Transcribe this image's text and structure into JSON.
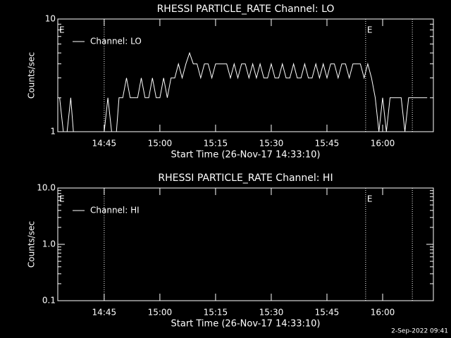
{
  "chart_data": [
    {
      "type": "line",
      "title": "RHESSI PARTICLE_RATE Channel: LO",
      "ylabel": "Counts/sec",
      "xlabel": "Start Time (26-Nov-17 14:33:10)",
      "log_y": true,
      "ylim": [
        1,
        10
      ],
      "yticks": [
        1,
        10
      ],
      "xlim": [
        "14:32:30",
        "16:13:40"
      ],
      "xticks": [
        "14:45",
        "15:00",
        "15:15",
        "15:30",
        "15:45",
        "16:00"
      ],
      "vlines": [
        "14:45",
        "15:55:25",
        "16:08"
      ],
      "annotations": [
        {
          "text": "E",
          "x": "14:32:30"
        },
        {
          "text": "E",
          "x": "15:55:25"
        }
      ],
      "legend": "upper left",
      "series": [
        {
          "name": "Channel: LO",
          "color": "#ffffff",
          "x": [
            "14:33",
            "14:34",
            "14:35",
            "14:36",
            "14:37",
            "14:38",
            "14:39",
            "14:40",
            "14:41",
            "14:42",
            "14:43",
            "14:44",
            "14:45",
            "14:46",
            "14:47",
            "14:48",
            "14:49",
            "14:50",
            "14:51",
            "14:52",
            "14:53",
            "14:54",
            "14:55",
            "14:56",
            "14:57",
            "14:58",
            "14:59",
            "15:00",
            "15:01",
            "15:02",
            "15:03",
            "15:04",
            "15:05",
            "15:06",
            "15:07",
            "15:08",
            "15:09",
            "15:10",
            "15:11",
            "15:12",
            "15:13",
            "15:14",
            "15:15",
            "15:16",
            "15:17",
            "15:18",
            "15:19",
            "15:20",
            "15:21",
            "15:22",
            "15:23",
            "15:24",
            "15:25",
            "15:26",
            "15:27",
            "15:28",
            "15:29",
            "15:30",
            "15:31",
            "15:32",
            "15:33",
            "15:34",
            "15:35",
            "15:36",
            "15:37",
            "15:38",
            "15:39",
            "15:40",
            "15:41",
            "15:42",
            "15:43",
            "15:44",
            "15:45",
            "15:46",
            "15:47",
            "15:48",
            "15:49",
            "15:50",
            "15:51",
            "15:52",
            "15:53",
            "15:54",
            "15:55",
            "15:56",
            "15:57",
            "15:58",
            "15:59",
            "16:00",
            "16:01",
            "16:02",
            "16:03",
            "16:04",
            "16:05",
            "16:06",
            "16:07",
            "16:08",
            "16:09",
            "16:10",
            "16:11",
            "16:12"
          ],
          "values": [
            2,
            1,
            1,
            2,
            0,
            0,
            0,
            0,
            0,
            0,
            0,
            0,
            1,
            2,
            1,
            0,
            2,
            2,
            3,
            2,
            2,
            2,
            3,
            2,
            2,
            3,
            2,
            2,
            3,
            2,
            3,
            3,
            4,
            3,
            4,
            5,
            4,
            4,
            3,
            4,
            4,
            3,
            4,
            4,
            4,
            4,
            3,
            4,
            3,
            4,
            4,
            3,
            4,
            3,
            4,
            3,
            3,
            4,
            3,
            3,
            4,
            3,
            3,
            4,
            3,
            3,
            4,
            3,
            3,
            4,
            3,
            4,
            3,
            4,
            4,
            3,
            4,
            4,
            3,
            4,
            4,
            4,
            3,
            4,
            3,
            2,
            1,
            2,
            1,
            2,
            2,
            2,
            2,
            1,
            2,
            2,
            2,
            2,
            2,
            2
          ]
        }
      ]
    },
    {
      "type": "line",
      "title": "RHESSI PARTICLE_RATE Channel: HI",
      "ylabel": "Counts/sec",
      "xlabel": "Start Time (26-Nov-17 14:33:10)",
      "log_y": true,
      "ylim": [
        0.1,
        10
      ],
      "yticks": [
        0.1,
        {
          "value": 1,
          "label": "1.0"
        },
        {
          "value": 10,
          "label": "10.0"
        }
      ],
      "xlim": [
        "14:32:30",
        "16:13:40"
      ],
      "xticks": [
        "14:45",
        "15:00",
        "15:15",
        "15:30",
        "15:45",
        "16:00"
      ],
      "vlines": [
        "14:45",
        "15:55:25",
        "16:08"
      ],
      "annotations": [
        {
          "text": "E",
          "x": "14:32:30"
        },
        {
          "text": "E",
          "x": "15:55:25"
        }
      ],
      "legend": "upper left",
      "series": [
        {
          "name": "Channel: HI",
          "color": "#ffffff"
        }
      ]
    }
  ],
  "footer": "2-Sep-2022 09:41"
}
